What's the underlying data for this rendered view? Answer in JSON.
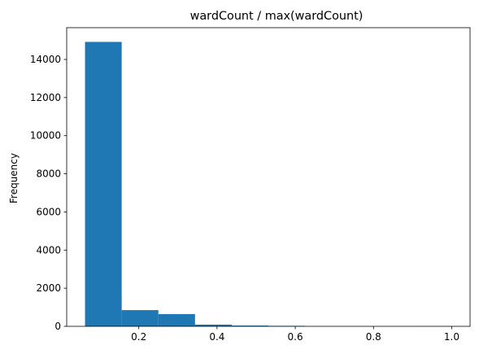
{
  "chart_data": {
    "type": "bar",
    "title": "wardCount / max(wardCount)",
    "xlabel": "",
    "ylabel": "Frequency",
    "bins": [
      {
        "x0": 0.0625,
        "x1": 0.15625,
        "value": 14920
      },
      {
        "x0": 0.15625,
        "x1": 0.25,
        "value": 850
      },
      {
        "x0": 0.25,
        "x1": 0.34375,
        "value": 640
      },
      {
        "x0": 0.34375,
        "x1": 0.4375,
        "value": 90
      },
      {
        "x0": 0.4375,
        "x1": 0.53125,
        "value": 40
      },
      {
        "x0": 0.53125,
        "x1": 0.625,
        "value": 25
      },
      {
        "x0": 0.625,
        "x1": 0.71875,
        "value": 0
      },
      {
        "x0": 0.71875,
        "x1": 0.8125,
        "value": 0
      },
      {
        "x0": 0.8125,
        "x1": 0.90625,
        "value": 0
      },
      {
        "x0": 0.90625,
        "x1": 1.0,
        "value": 1
      }
    ],
    "xlim": [
      0.015625,
      1.046875
    ],
    "ylim": [
      0,
      15666
    ],
    "xticks": [
      0.2,
      0.4,
      0.6,
      0.8,
      1.0
    ],
    "xtick_labels": [
      "0.2",
      "0.4",
      "0.6",
      "0.8",
      "1.0"
    ],
    "yticks": [
      0,
      2000,
      4000,
      6000,
      8000,
      10000,
      12000,
      14000
    ],
    "ytick_labels": [
      "0",
      "2000",
      "4000",
      "6000",
      "8000",
      "10000",
      "12000",
      "14000"
    ],
    "bar_color": "#1f77b4",
    "grid": false,
    "legend": "none"
  }
}
